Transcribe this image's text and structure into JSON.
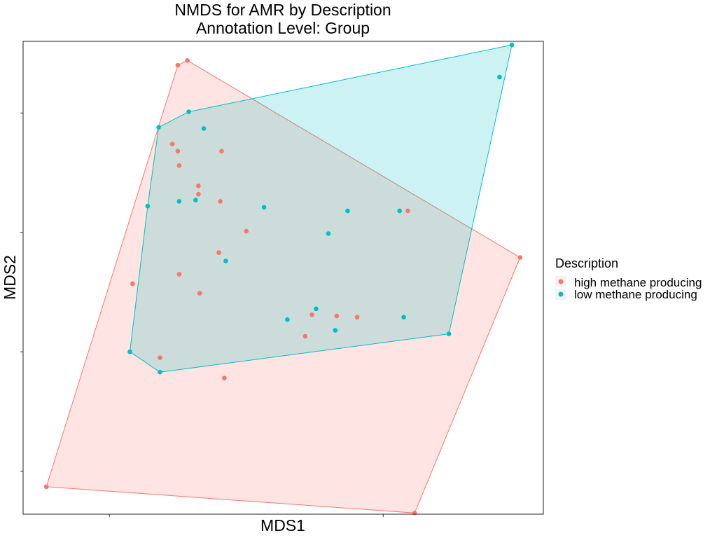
{
  "chart_data": {
    "type": "scatter",
    "title": "NMDS for AMR by Description",
    "subtitle": "Annotation Level: Group",
    "xlabel": "MDS1",
    "ylabel": "MDS2",
    "xlim": [
      -1.63,
      2.17
    ],
    "ylim": [
      -1.86,
      2.1
    ],
    "x_ticks": [
      -1.0,
      1.0
    ],
    "y_ticks": [
      -1.5,
      -0.5,
      0.5,
      1.5
    ],
    "tick_labels_shown": false,
    "grid": false,
    "hulls": true,
    "legend": {
      "title": "Description",
      "position": "right"
    },
    "series": [
      {
        "name": "high methane producing",
        "color": "#F8766D",
        "hull_fill": "#FFE0E0",
        "points": [
          {
            "x": -0.5,
            "y": 1.9
          },
          {
            "x": -0.43,
            "y": 1.94
          },
          {
            "x": 2.0,
            "y": 0.29
          },
          {
            "x": 1.23,
            "y": -1.85
          },
          {
            "x": -1.46,
            "y": -1.63
          },
          {
            "x": -0.54,
            "y": 1.24
          },
          {
            "x": -0.5,
            "y": 1.18
          },
          {
            "x": -0.49,
            "y": 1.06
          },
          {
            "x": -0.18,
            "y": 1.18
          },
          {
            "x": -0.35,
            "y": 0.89
          },
          {
            "x": -0.35,
            "y": 0.82
          },
          {
            "x": -0.19,
            "y": 0.76
          },
          {
            "x": 0.0,
            "y": 0.51
          },
          {
            "x": -0.2,
            "y": 0.33
          },
          {
            "x": -0.49,
            "y": 0.15
          },
          {
            "x": -0.83,
            "y": 0.07
          },
          {
            "x": -0.34,
            "y": -0.01
          },
          {
            "x": 0.81,
            "y": -0.21
          },
          {
            "x": 0.66,
            "y": -0.2
          },
          {
            "x": 0.48,
            "y": -0.19
          },
          {
            "x": 0.43,
            "y": -0.37
          },
          {
            "x": -0.63,
            "y": -0.55
          },
          {
            "x": -0.16,
            "y": -0.72
          },
          {
            "x": 1.18,
            "y": 0.68
          }
        ]
      },
      {
        "name": "low methane producing",
        "color": "#00BFC4",
        "hull_fill": "#CDF0F1",
        "points": [
          {
            "x": 1.94,
            "y": 2.07
          },
          {
            "x": 1.85,
            "y": 1.8
          },
          {
            "x": -0.42,
            "y": 1.51
          },
          {
            "x": -0.64,
            "y": 1.38
          },
          {
            "x": -0.72,
            "y": 0.72
          },
          {
            "x": -0.85,
            "y": -0.5
          },
          {
            "x": -0.63,
            "y": -0.67
          },
          {
            "x": 1.48,
            "y": -0.35
          },
          {
            "x": -0.31,
            "y": 1.37
          },
          {
            "x": -0.49,
            "y": 0.76
          },
          {
            "x": -0.37,
            "y": 0.77
          },
          {
            "x": 0.13,
            "y": 0.71
          },
          {
            "x": 0.74,
            "y": 0.68
          },
          {
            "x": 1.12,
            "y": 0.68
          },
          {
            "x": 0.6,
            "y": 0.49
          },
          {
            "x": -0.15,
            "y": 0.26
          },
          {
            "x": 0.3,
            "y": -0.23
          },
          {
            "x": 0.51,
            "y": -0.14
          },
          {
            "x": 1.15,
            "y": -0.21
          },
          {
            "x": 0.65,
            "y": -0.32
          }
        ]
      }
    ]
  }
}
